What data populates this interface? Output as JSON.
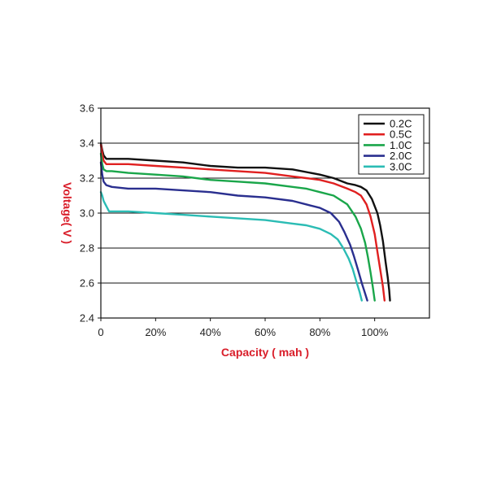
{
  "chart_data": {
    "type": "line",
    "title": "",
    "xlabel": "Capacity ( mah )",
    "ylabel": "Voltage( V )",
    "label_color": "#d91e2a",
    "xlim": [
      0,
      120
    ],
    "ylim": [
      2.4,
      3.6
    ],
    "x_ticks": [
      {
        "value": 0,
        "label": "0"
      },
      {
        "value": 20,
        "label": "20%"
      },
      {
        "value": 40,
        "label": "40%"
      },
      {
        "value": 60,
        "label": "60%"
      },
      {
        "value": 80,
        "label": "80%"
      },
      {
        "value": 100,
        "label": "100%"
      }
    ],
    "y_ticks": [
      {
        "value": 2.4,
        "label": "2.4"
      },
      {
        "value": 2.6,
        "label": "2.6"
      },
      {
        "value": 2.8,
        "label": "2.8"
      },
      {
        "value": 3.0,
        "label": "3.0"
      },
      {
        "value": 3.2,
        "label": "3.2"
      },
      {
        "value": 3.4,
        "label": "3.4"
      },
      {
        "value": 3.6,
        "label": "3.6"
      }
    ],
    "grid": "horizontal",
    "legend_position": "top-right",
    "series": [
      {
        "name": "0.2C",
        "color": "#111111",
        "x": [
          0,
          0.5,
          1,
          2,
          4,
          10,
          20,
          30,
          40,
          50,
          60,
          70,
          80,
          85,
          90,
          93,
          95,
          97,
          99,
          101,
          102,
          103,
          104,
          104.8,
          105.3,
          105.6
        ],
        "y": [
          3.4,
          3.36,
          3.33,
          3.31,
          3.31,
          3.31,
          3.3,
          3.29,
          3.27,
          3.26,
          3.26,
          3.25,
          3.22,
          3.2,
          3.17,
          3.16,
          3.15,
          3.13,
          3.08,
          3.0,
          2.93,
          2.84,
          2.72,
          2.63,
          2.56,
          2.5
        ]
      },
      {
        "name": "0.5C",
        "color": "#e02020",
        "x": [
          0,
          0.5,
          1,
          2,
          4,
          10,
          20,
          30,
          40,
          50,
          60,
          70,
          75,
          80,
          85,
          90,
          93,
          95,
          97,
          98.5,
          100,
          101,
          102,
          103,
          103.6
        ],
        "y": [
          3.39,
          3.34,
          3.3,
          3.28,
          3.28,
          3.28,
          3.27,
          3.26,
          3.25,
          3.24,
          3.23,
          3.21,
          3.2,
          3.19,
          3.17,
          3.14,
          3.12,
          3.1,
          3.05,
          2.98,
          2.88,
          2.78,
          2.68,
          2.58,
          2.5
        ]
      },
      {
        "name": "1.0C",
        "color": "#1aa64a",
        "x": [
          0,
          0.5,
          1,
          2,
          4,
          10,
          20,
          30,
          40,
          50,
          60,
          70,
          75,
          80,
          85,
          90,
          93,
          95,
          96.5,
          97.5,
          98.5,
          99.3,
          100
        ],
        "y": [
          3.34,
          3.28,
          3.25,
          3.24,
          3.24,
          3.23,
          3.22,
          3.21,
          3.19,
          3.18,
          3.17,
          3.15,
          3.14,
          3.12,
          3.1,
          3.05,
          2.98,
          2.91,
          2.83,
          2.75,
          2.66,
          2.58,
          2.5
        ]
      },
      {
        "name": "2.0C",
        "color": "#2a2f8f",
        "x": [
          0,
          0.5,
          1,
          2,
          4,
          10,
          20,
          30,
          40,
          50,
          60,
          70,
          75,
          80,
          84,
          87,
          89,
          91,
          92.5,
          94,
          95.3,
          96.5,
          97.3
        ],
        "y": [
          3.29,
          3.22,
          3.18,
          3.16,
          3.15,
          3.14,
          3.14,
          3.13,
          3.12,
          3.1,
          3.09,
          3.07,
          3.05,
          3.03,
          3.0,
          2.95,
          2.89,
          2.82,
          2.75,
          2.67,
          2.6,
          2.54,
          2.5
        ]
      },
      {
        "name": "3.0C",
        "color": "#2bbcb4",
        "x": [
          0,
          0.5,
          1,
          2,
          3,
          5,
          10,
          20,
          30,
          40,
          50,
          60,
          70,
          75,
          80,
          84,
          86.5,
          88.5,
          90.5,
          92,
          93.3,
          94.5,
          95.3
        ],
        "y": [
          3.12,
          3.1,
          3.07,
          3.04,
          3.01,
          3.01,
          3.01,
          3.0,
          2.99,
          2.98,
          2.97,
          2.96,
          2.94,
          2.93,
          2.91,
          2.88,
          2.85,
          2.8,
          2.74,
          2.68,
          2.61,
          2.55,
          2.5
        ]
      }
    ]
  }
}
